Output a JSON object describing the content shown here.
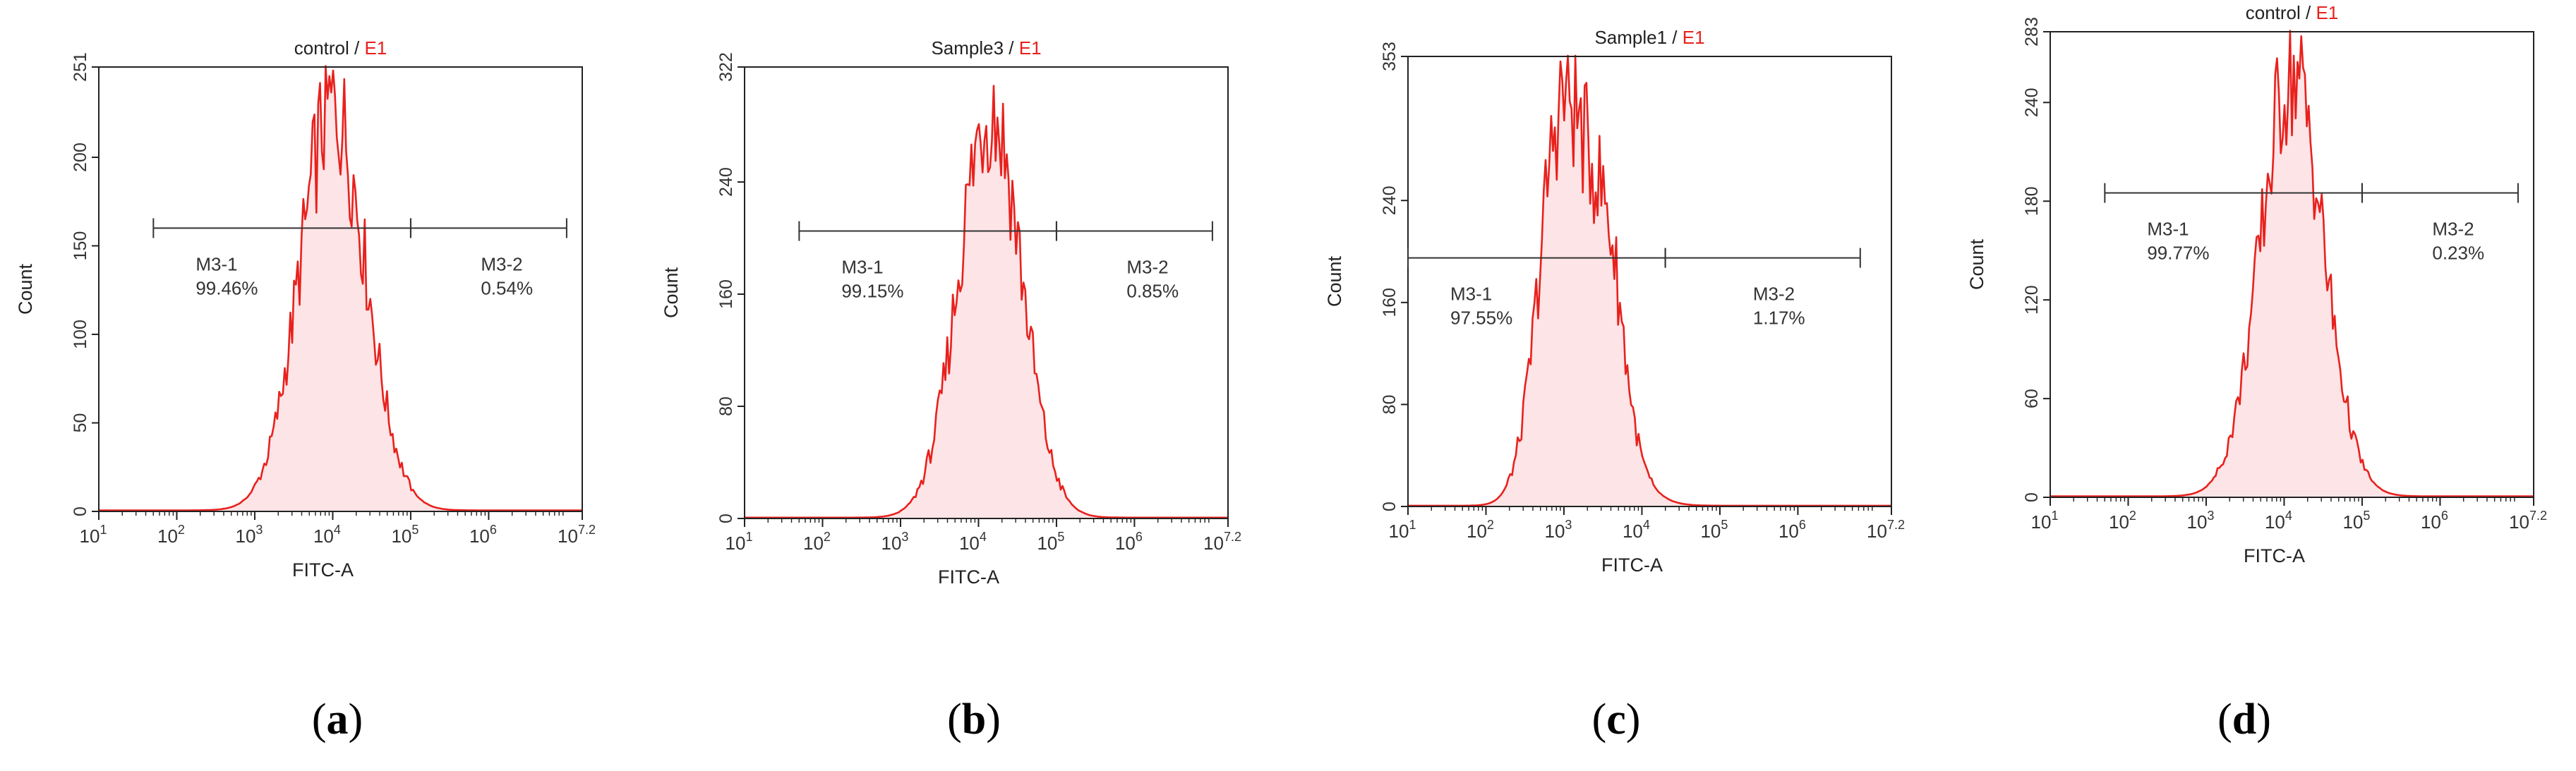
{
  "chart_data": [
    {
      "type": "histogram",
      "panel": "a",
      "title_sample": "control",
      "title_sep": " / ",
      "title_gate": "E1",
      "xlabel": "FITC-A",
      "ylabel": "Count",
      "xscale": "log",
      "xlim_log10": [
        1,
        7.2
      ],
      "ylim": [
        0,
        251
      ],
      "yticks": [
        0,
        50,
        100,
        150,
        200,
        251
      ],
      "xtick_labels": [
        "10",
        "10",
        "10",
        "10",
        "10",
        "10",
        "10"
      ],
      "xtick_exponents": [
        "1",
        "2",
        "3",
        "4",
        "5",
        "6",
        "7.2"
      ],
      "peak_log10": 4.0,
      "peak_count": 228,
      "spread": 0.42,
      "skew": 0.0,
      "shoulder": {
        "log10": 4.55,
        "count": 0
      },
      "gate_y": 160,
      "gates": [
        {
          "name": "M3-1",
          "percent": "99.46%",
          "from_log10": 1.7,
          "to_log10": 5.0
        },
        {
          "name": "M3-2",
          "percent": "0.54%",
          "from_log10": 5.0,
          "to_log10": 7.0
        }
      ],
      "caption_open": "(",
      "caption_letter": "a",
      "caption_close": ")"
    },
    {
      "type": "histogram",
      "panel": "b",
      "title_sample": "Sample3",
      "title_sep": " / ",
      "title_gate": "E1",
      "xlabel": "FITC-A",
      "ylabel": "Count",
      "xscale": "log",
      "xlim_log10": [
        1,
        7.2
      ],
      "ylim": [
        0,
        322
      ],
      "yticks": [
        0,
        80,
        160,
        240,
        322
      ],
      "xtick_labels": [
        "10",
        "10",
        "10",
        "10",
        "10",
        "10",
        "10"
      ],
      "xtick_exponents": [
        "1",
        "2",
        "3",
        "4",
        "5",
        "6",
        "7.2"
      ],
      "peak_log10": 4.15,
      "peak_count": 292,
      "spread": 0.4,
      "skew": 0.0,
      "shoulder": {
        "log10": 4.6,
        "count": 0
      },
      "gate_y": 205,
      "gates": [
        {
          "name": "M3-1",
          "percent": "99.15%",
          "from_log10": 1.7,
          "to_log10": 5.0
        },
        {
          "name": "M3-2",
          "percent": "0.85%",
          "from_log10": 5.0,
          "to_log10": 7.0
        }
      ],
      "caption_open": "(",
      "caption_letter": "b",
      "caption_close": ")"
    },
    {
      "type": "histogram",
      "panel": "c",
      "title_sample": "Sample1",
      "title_sep": " / ",
      "title_gate": "E1",
      "xlabel": "FITC-A",
      "ylabel": "Count",
      "xscale": "log",
      "xlim_log10": [
        1,
        7.2
      ],
      "ylim": [
        0,
        353
      ],
      "yticks": [
        0,
        80,
        160,
        240,
        353
      ],
      "xtick_labels": [
        "10",
        "10",
        "10",
        "10",
        "10",
        "10",
        "10"
      ],
      "xtick_exponents": [
        "1",
        "2",
        "3",
        "4",
        "5",
        "6",
        "7.2"
      ],
      "peak_log10": 3.0,
      "peak_count": 322,
      "spread": 0.3,
      "skew": 0.55,
      "shoulder": {
        "log10": 3.6,
        "count": 75
      },
      "gate_y": 195,
      "gates": [
        {
          "name": "M3-1",
          "percent": "97.55%",
          "from_log10": 1.0,
          "to_log10": 4.3
        },
        {
          "name": "M3-2",
          "percent": "1.17%",
          "from_log10": 4.3,
          "to_log10": 6.8
        }
      ],
      "caption_open": "(",
      "caption_letter": "c",
      "caption_close": ")"
    },
    {
      "type": "histogram",
      "panel": "d",
      "title_sample": "control",
      "title_sep": " / ",
      "title_gate": "E1",
      "xlabel": "FITC-A",
      "ylabel": "Count",
      "xscale": "log",
      "xlim_log10": [
        1,
        7.2
      ],
      "ylim": [
        0,
        283
      ],
      "yticks": [
        0,
        60,
        120,
        180,
        240,
        283
      ],
      "xtick_labels": [
        "10",
        "10",
        "10",
        "10",
        "10",
        "10",
        "10"
      ],
      "xtick_exponents": [
        "1",
        "2",
        "3",
        "4",
        "5",
        "6",
        "7.2"
      ],
      "peak_log10": 4.1,
      "peak_count": 258,
      "spread": 0.4,
      "skew": 0.0,
      "shoulder": {
        "log10": 4.6,
        "count": 0
      },
      "gate_y": 185,
      "gates": [
        {
          "name": "M3-1",
          "percent": "99.77%",
          "from_log10": 1.7,
          "to_log10": 5.0
        },
        {
          "name": "M3-2",
          "percent": "0.23%",
          "from_log10": 5.0,
          "to_log10": 7.0
        }
      ],
      "caption_open": "(",
      "caption_letter": "d",
      "caption_close": ")"
    }
  ],
  "colors": {
    "curve": "#e8211d",
    "fill": "#fde4e6",
    "gate_title": "#e8211d",
    "axis": "#222222"
  }
}
